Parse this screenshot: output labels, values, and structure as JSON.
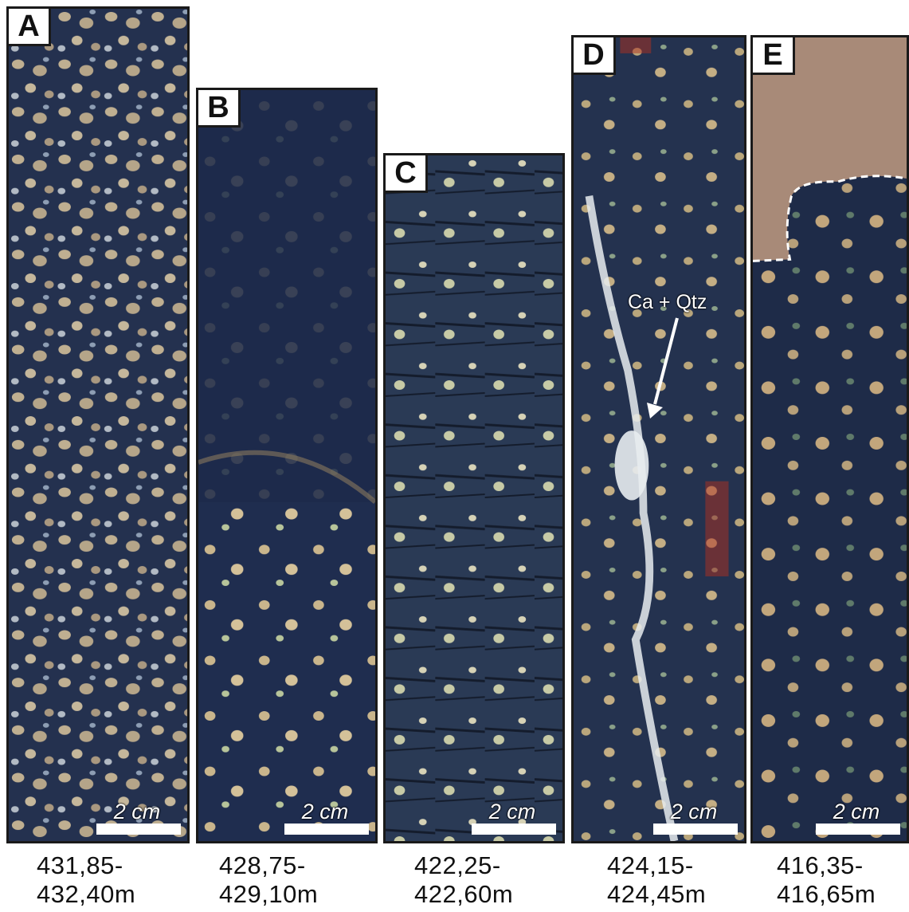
{
  "panels": [
    {
      "letter": "A",
      "scale": "2 cm",
      "depth_top": "431,85-",
      "depth_bottom": "432,40m"
    },
    {
      "letter": "B",
      "scale": "2 cm",
      "depth_top": "428,75-",
      "depth_bottom": "429,10m"
    },
    {
      "letter": "C",
      "scale": "2 cm",
      "depth_top": "422,25-",
      "depth_bottom": "422,60m"
    },
    {
      "letter": "D",
      "scale": "2 cm",
      "depth_top": "424,15-",
      "depth_bottom": "424,45m"
    },
    {
      "letter": "E",
      "scale": "2 cm",
      "depth_top": "416,35-",
      "depth_bottom": "416,65m"
    }
  ],
  "annotation": "Ca + Qtz",
  "colors": {
    "core_dark": "#1e2a44",
    "core_mid": "#2c3d5e",
    "crystal": "#d9c39a",
    "vein": "#e8ecef",
    "red_stain": "#b03020",
    "host_rock": "#a88a78"
  }
}
